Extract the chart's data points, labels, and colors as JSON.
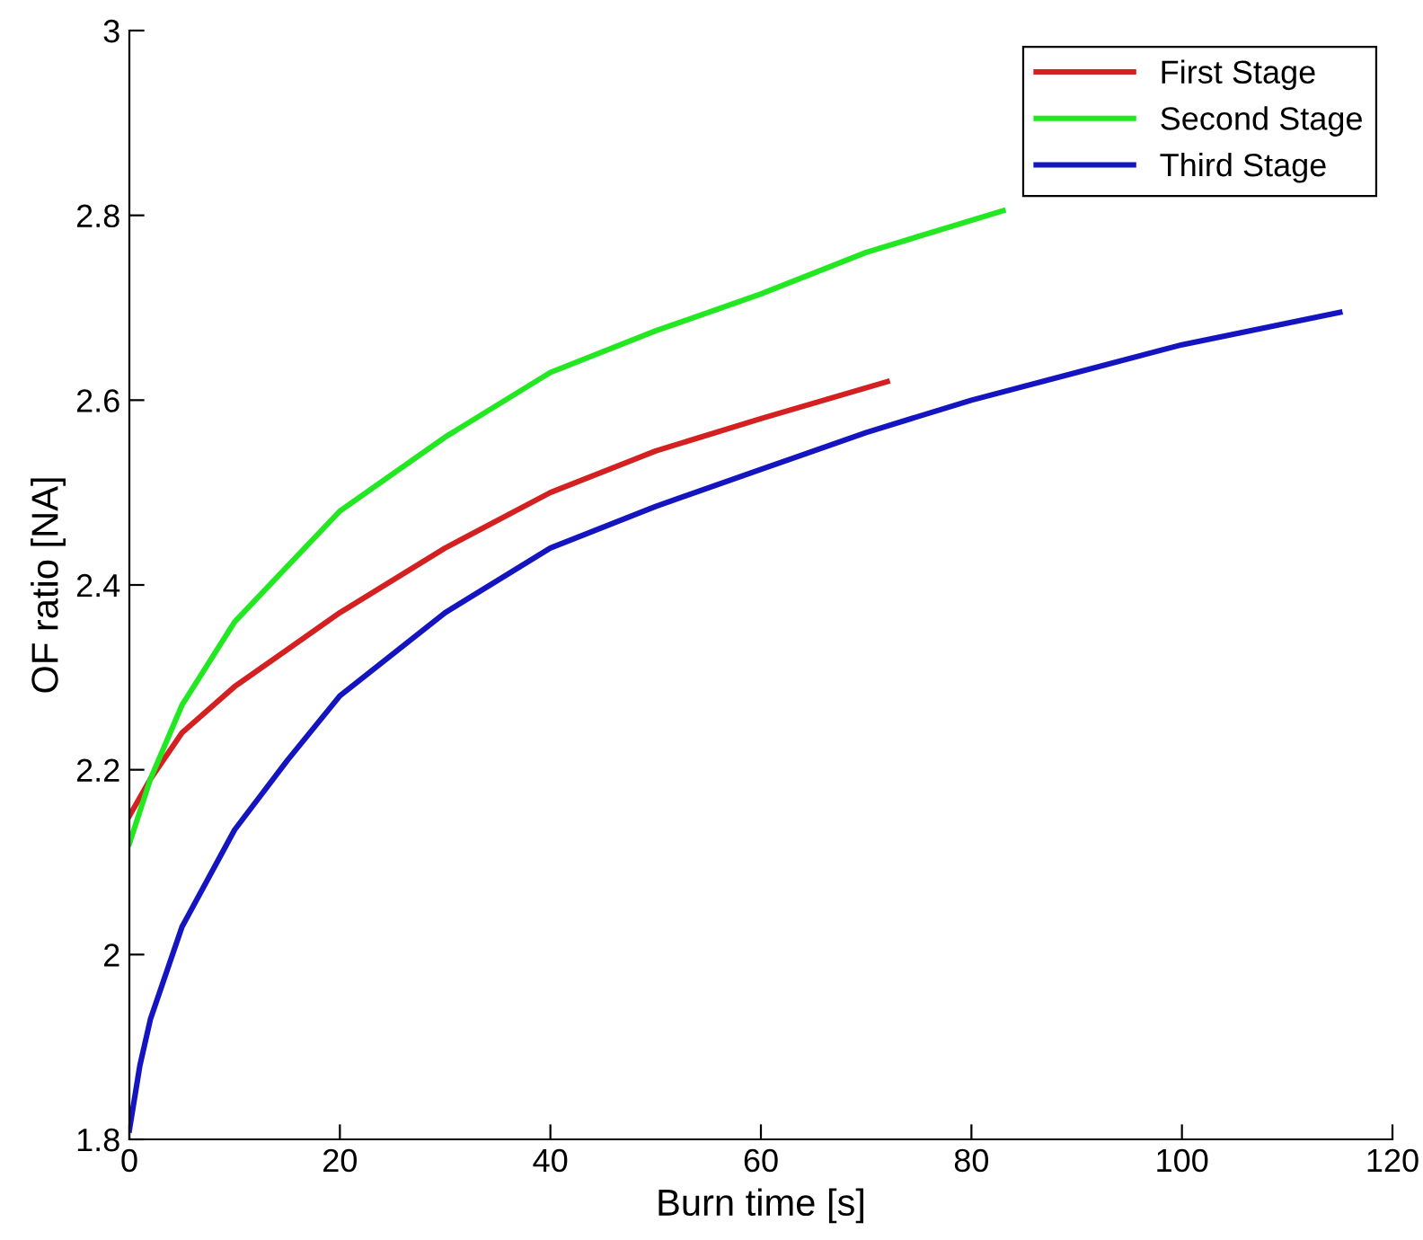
{
  "chart_data": {
    "type": "line",
    "xlabel": "Burn time [s]",
    "ylabel": "OF ratio [NA]",
    "xlim": [
      0,
      120
    ],
    "xticks": [
      0,
      20,
      40,
      60,
      80,
      100,
      120
    ],
    "ylim": [
      1.8,
      3
    ],
    "yticks": [
      1.8,
      2,
      2.2,
      2.4,
      2.6,
      2.8,
      3
    ],
    "grid": false,
    "legend": "top right",
    "marker": "none",
    "line_style": "solid",
    "series": [
      {
        "name": "First Stage",
        "color": "#d42020",
        "x": [
          0,
          2,
          5,
          10,
          15,
          20,
          30,
          40,
          50,
          60,
          72
        ],
        "values": [
          2.15,
          2.19,
          2.24,
          2.29,
          2.33,
          2.37,
          2.44,
          2.5,
          2.545,
          2.58,
          2.62
        ]
      },
      {
        "name": "Second Stage",
        "color": "#22e822",
        "x": [
          0,
          2,
          5,
          10,
          15,
          20,
          30,
          40,
          50,
          60,
          70,
          83
        ],
        "values": [
          2.12,
          2.19,
          2.27,
          2.36,
          2.42,
          2.48,
          2.56,
          2.63,
          2.675,
          2.715,
          2.76,
          2.805
        ]
      },
      {
        "name": "Third Stage",
        "color": "#1414c0",
        "x": [
          0,
          1,
          2,
          5,
          10,
          15,
          20,
          30,
          40,
          50,
          60,
          70,
          80,
          90,
          100,
          115
        ],
        "values": [
          1.81,
          1.88,
          1.93,
          2.03,
          2.135,
          2.21,
          2.28,
          2.37,
          2.44,
          2.485,
          2.525,
          2.565,
          2.6,
          2.63,
          2.66,
          2.695
        ]
      }
    ]
  }
}
